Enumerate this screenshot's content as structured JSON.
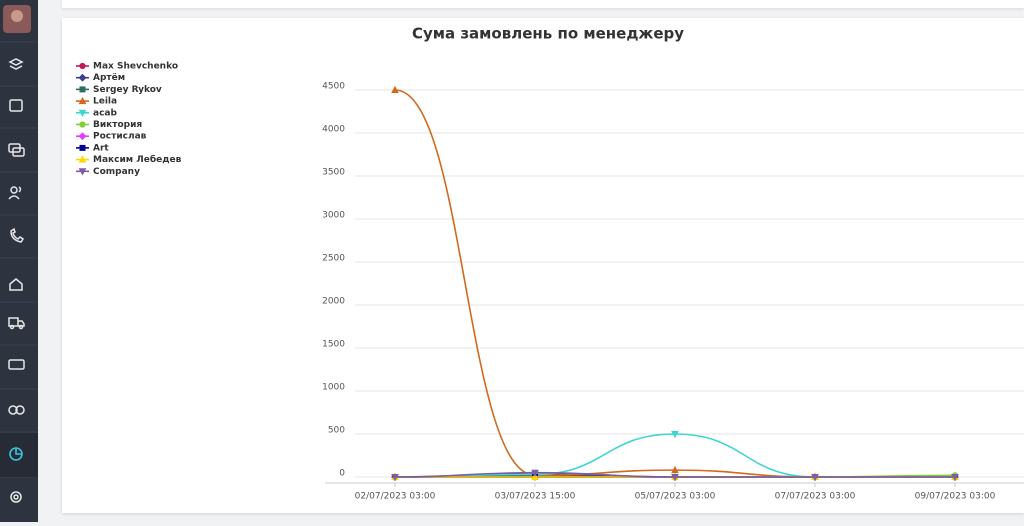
{
  "chart_data": {
    "type": "line",
    "title": "Сума замовлень по менеджеру",
    "categories": [
      "02/07/2023 03:00",
      "03/07/2023 15:00",
      "05/07/2023 03:00",
      "07/07/2023 03:00",
      "09/07/2023 03:00"
    ],
    "ylim": [
      0,
      4500
    ],
    "yticks": [
      0,
      500,
      1000,
      1500,
      2000,
      2500,
      3000,
      3500,
      4000,
      4500
    ],
    "grid": true,
    "legend": "top-left",
    "series": [
      {
        "name": "Max Shevchenko",
        "color": "#c2185b",
        "marker": "circle",
        "values": [
          0,
          20,
          0,
          0,
          0
        ]
      },
      {
        "name": "Артём",
        "color": "#3d3d8f",
        "marker": "diamond",
        "values": [
          0,
          40,
          0,
          0,
          0
        ]
      },
      {
        "name": "Sergey Rykov",
        "color": "#2e6f62",
        "marker": "square",
        "values": [
          0,
          10,
          0,
          0,
          0
        ]
      },
      {
        "name": "Leila",
        "color": "#d2691e",
        "marker": "triangle",
        "values": [
          4500,
          20,
          80,
          0,
          0
        ]
      },
      {
        "name": "acab",
        "color": "#3ed6d0",
        "marker": "triangle-down",
        "values": [
          0,
          30,
          500,
          0,
          0
        ]
      },
      {
        "name": "Виктория",
        "color": "#7fd13b",
        "marker": "circle",
        "values": [
          0,
          0,
          0,
          0,
          20
        ]
      },
      {
        "name": "Ростислав",
        "color": "#e040fb",
        "marker": "diamond",
        "values": [
          0,
          0,
          0,
          0,
          0
        ]
      },
      {
        "name": "Art",
        "color": "#00008b",
        "marker": "square",
        "values": [
          0,
          0,
          0,
          0,
          0
        ]
      },
      {
        "name": "Максим Лебедев",
        "color": "#ffd700",
        "marker": "triangle",
        "values": [
          0,
          0,
          0,
          0,
          0
        ]
      },
      {
        "name": "Company",
        "color": "#7b5ea7",
        "marker": "triangle-down",
        "values": [
          0,
          50,
          0,
          0,
          0
        ]
      }
    ]
  }
}
